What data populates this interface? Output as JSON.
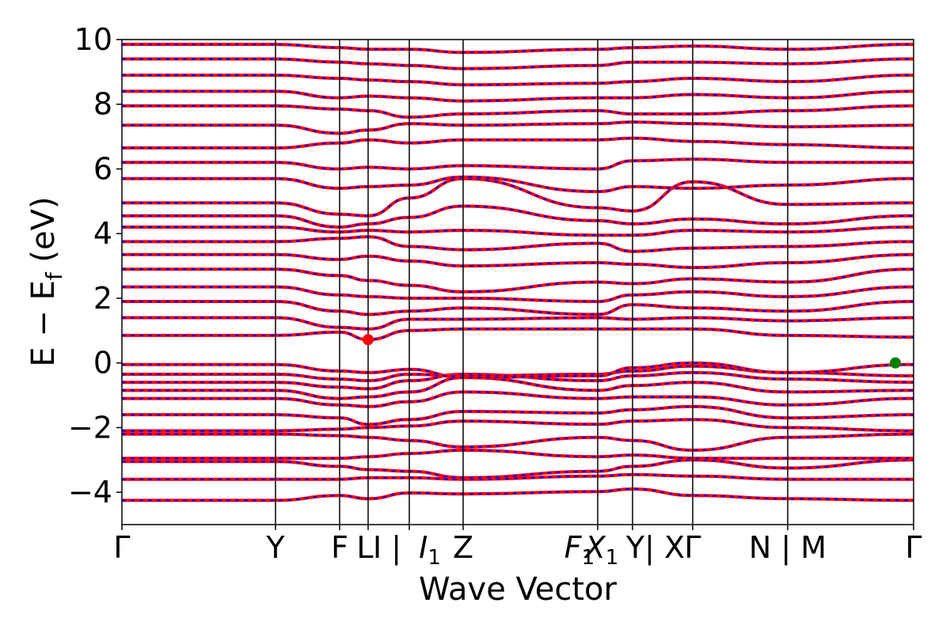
{
  "chart_data": {
    "type": "line",
    "title": "",
    "xlabel": "Wave Vector",
    "ylabel": "E − E",
    "ylabel_sub": "f",
    "ylabel_unit": " (eV)",
    "ylim": [
      -5,
      10
    ],
    "yticks": [
      -4,
      -2,
      0,
      2,
      4,
      6,
      8,
      10
    ],
    "ytick_labels": [
      "−4",
      "−2",
      "0",
      "2",
      "4",
      "6",
      "8",
      "10"
    ],
    "xlim": [
      0,
      1
    ],
    "kpoint_boundaries": [
      0.0,
      0.194,
      0.275,
      0.311,
      0.363,
      0.431,
      0.601,
      0.645,
      0.721,
      0.841,
      1.0
    ],
    "kpath_labels": [
      {
        "text": "Γ",
        "x": 0.0
      },
      {
        "text": "Y",
        "x": 0.194
      },
      {
        "text": "F",
        "x": 0.275
      },
      {
        "text": "L",
        "x": 0.307
      },
      {
        "text": "I | ",
        "x": 0.335
      },
      {
        "text": "I",
        "sub": "1",
        "x": 0.389
      },
      {
        "text": "Z",
        "x": 0.431
      },
      {
        "text": "F",
        "sub": "1",
        "x": 0.578
      },
      {
        "text": "X",
        "sub": "1",
        "x": 0.606
      },
      {
        "text": "Y| X",
        "x": 0.674
      },
      {
        "text": "Γ",
        "x": 0.721
      },
      {
        "text": "N | M",
        "x": 0.841
      },
      {
        "text": "Γ",
        "x": 1.0
      }
    ],
    "grid": false,
    "legend": "none",
    "series_style": [
      {
        "color": "#ff0000",
        "style": "solid"
      },
      {
        "color": "#0000ff",
        "style": "dashed"
      }
    ],
    "bands": [
      [
        -4.25,
        -4.25,
        -4.1,
        -4.2,
        -4.02,
        -4.05,
        -3.98,
        -3.9,
        -4.1,
        -4.2,
        -4.25
      ],
      [
        -3.6,
        -3.6,
        -3.6,
        -3.55,
        -3.55,
        -3.6,
        -3.5,
        -3.45,
        -3.5,
        -3.6,
        -3.6
      ],
      [
        -3.05,
        -3.05,
        -3.2,
        -3.3,
        -3.35,
        -3.55,
        -3.35,
        -3.2,
        -3.0,
        -3.25,
        -3.0
      ],
      [
        -2.95,
        -2.95,
        -2.95,
        -2.9,
        -2.8,
        -2.7,
        -2.9,
        -2.85,
        -2.95,
        -2.95,
        -2.95
      ],
      [
        -2.2,
        -2.2,
        -2.25,
        -2.3,
        -2.4,
        -2.6,
        -2.3,
        -2.4,
        -2.7,
        -2.3,
        -2.2
      ],
      [
        -2.1,
        -2.1,
        -2.05,
        -2.0,
        -1.95,
        -1.8,
        -1.9,
        -1.8,
        -1.75,
        -2.0,
        -2.1
      ],
      [
        -1.6,
        -1.6,
        -1.7,
        -1.9,
        -1.75,
        -1.5,
        -1.55,
        -1.45,
        -1.35,
        -1.7,
        -1.6
      ],
      [
        -1.1,
        -1.1,
        -1.3,
        -1.35,
        -1.2,
        -0.9,
        -1.1,
        -1.05,
        -1.05,
        -1.3,
        -1.1
      ],
      [
        -0.85,
        -0.85,
        -1.1,
        -1.05,
        -0.9,
        -0.45,
        -0.85,
        -0.7,
        -0.6,
        -0.9,
        -0.85
      ],
      [
        -0.6,
        -0.6,
        -0.75,
        -0.8,
        -0.55,
        -0.35,
        -0.55,
        -0.4,
        -0.3,
        -0.5,
        -0.6
      ],
      [
        -0.35,
        -0.35,
        -0.5,
        -0.55,
        -0.35,
        -0.4,
        -0.35,
        -0.25,
        -0.1,
        -0.3,
        -0.4
      ],
      [
        -0.05,
        -0.05,
        -0.25,
        -0.3,
        -0.2,
        -0.45,
        -0.4,
        -0.15,
        0.0,
        -0.3,
        -0.05
      ],
      [
        0.85,
        0.85,
        0.95,
        0.72,
        1.0,
        1.05,
        1.05,
        1.05,
        1.05,
        0.85,
        0.8
      ],
      [
        1.4,
        1.4,
        1.1,
        1.05,
        1.35,
        1.35,
        1.4,
        1.35,
        1.4,
        1.3,
        1.4
      ],
      [
        1.9,
        1.9,
        1.6,
        1.5,
        1.6,
        1.7,
        1.5,
        1.8,
        1.7,
        1.6,
        1.9
      ],
      [
        2.35,
        2.35,
        2.1,
        2.05,
        2.0,
        2.0,
        1.9,
        2.1,
        2.2,
        2.05,
        2.35
      ],
      [
        2.9,
        2.9,
        2.7,
        2.55,
        2.4,
        2.2,
        2.5,
        2.45,
        2.6,
        2.5,
        2.9
      ],
      [
        3.35,
        3.35,
        3.2,
        3.3,
        3.15,
        3.0,
        3.1,
        3.05,
        2.95,
        3.1,
        3.35
      ],
      [
        3.75,
        3.75,
        3.85,
        3.9,
        3.6,
        3.5,
        3.7,
        3.45,
        3.55,
        3.6,
        3.75
      ],
      [
        4.2,
        4.2,
        4.05,
        4.1,
        4.05,
        4.1,
        3.95,
        3.95,
        4.1,
        4.05,
        4.2
      ],
      [
        4.55,
        4.55,
        4.2,
        4.3,
        4.5,
        4.85,
        4.4,
        4.3,
        4.45,
        4.3,
        4.55
      ],
      [
        4.95,
        4.95,
        4.6,
        4.55,
        5.1,
        5.7,
        4.8,
        4.7,
        5.6,
        4.9,
        4.95
      ],
      [
        5.7,
        5.7,
        5.4,
        5.45,
        5.5,
        5.75,
        5.3,
        5.45,
        5.4,
        5.5,
        5.7
      ],
      [
        6.2,
        6.2,
        6.0,
        6.05,
        6.0,
        6.1,
        6.0,
        6.25,
        6.3,
        6.2,
        6.2
      ],
      [
        6.65,
        6.65,
        6.8,
        6.9,
        6.8,
        6.9,
        6.9,
        6.95,
        6.85,
        6.75,
        6.65
      ],
      [
        7.35,
        7.35,
        7.1,
        7.2,
        7.4,
        7.35,
        7.4,
        7.45,
        7.4,
        7.3,
        7.35
      ],
      [
        7.95,
        7.95,
        7.85,
        7.8,
        7.6,
        7.7,
        7.8,
        7.7,
        7.7,
        7.8,
        7.95
      ],
      [
        8.4,
        8.4,
        8.2,
        8.25,
        8.2,
        8.1,
        8.2,
        8.2,
        8.3,
        8.2,
        8.4
      ],
      [
        8.9,
        8.9,
        8.8,
        8.75,
        8.7,
        8.6,
        8.65,
        8.7,
        8.8,
        8.7,
        8.9
      ],
      [
        9.4,
        9.4,
        9.3,
        9.25,
        9.2,
        9.1,
        9.2,
        9.3,
        9.3,
        9.25,
        9.4
      ],
      [
        9.85,
        9.85,
        9.75,
        9.7,
        9.7,
        9.6,
        9.7,
        9.75,
        9.8,
        9.7,
        9.85
      ]
    ],
    "markers": [
      {
        "x": 0.311,
        "y": 0.72,
        "color": "#ff0000"
      },
      {
        "x": 0.977,
        "y": 0.0,
        "color": "#008000"
      }
    ]
  }
}
